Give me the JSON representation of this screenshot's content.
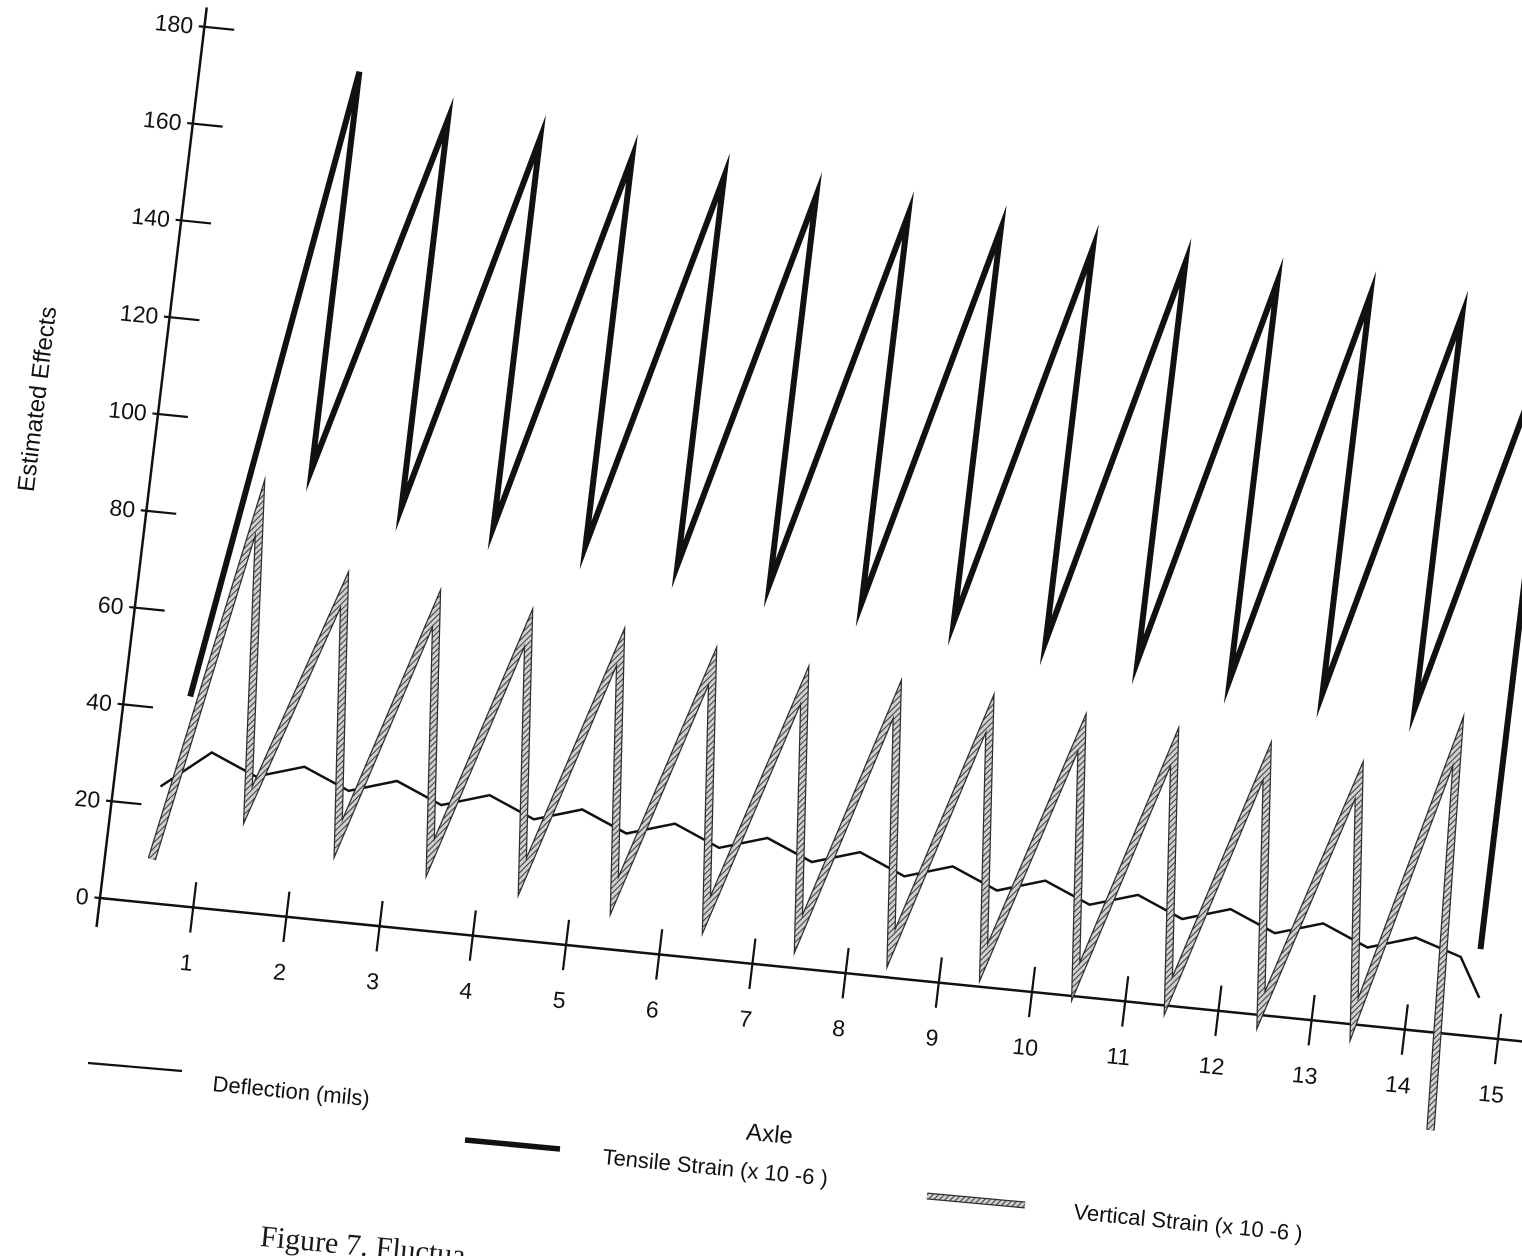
{
  "colors": {
    "ink": "#111111",
    "vertical_strain": "#8a8a8a"
  },
  "figure": {
    "caption": "Figure 7. Fluctua"
  },
  "chart_data": {
    "type": "line",
    "title": "",
    "xlabel": "Axle",
    "ylabel": "Estimated Effects",
    "xlim": [
      0,
      15
    ],
    "ylim": [
      0,
      180
    ],
    "x_ticks": [
      1,
      2,
      3,
      4,
      5,
      6,
      7,
      8,
      9,
      10,
      11,
      12,
      13,
      14,
      15
    ],
    "y_ticks": [
      0,
      20,
      40,
      60,
      80,
      100,
      120,
      140,
      160,
      180
    ],
    "grid": false,
    "legend_position": "bottom",
    "series": [
      {
        "name": "Deflection (mils)",
        "style": "thin",
        "x": [
          0.5,
          1.0,
          1.5,
          2.0,
          2.5,
          3.0,
          3.5,
          4.0,
          4.5,
          5.0,
          5.5,
          6.0,
          6.5,
          7.0,
          7.5,
          8.0,
          8.5,
          9.0,
          9.5,
          10.0,
          10.5,
          11.0,
          11.5,
          12.0,
          12.5,
          13.0,
          13.5,
          14.0,
          14.5,
          14.75
        ],
        "values": [
          24,
          32,
          28,
          31,
          27,
          30,
          26,
          29,
          25,
          28,
          24,
          27,
          23,
          26,
          22,
          25,
          21,
          24,
          20,
          23,
          19,
          22,
          18,
          21,
          17,
          20,
          16,
          19,
          16,
          8
        ]
      },
      {
        "name": "Tensile Strain (x 10 -6 )",
        "style": "thick",
        "x": [
          0.7,
          1.7,
          1.7,
          2.7,
          2.7,
          3.7,
          3.7,
          4.7,
          4.7,
          5.7,
          5.7,
          6.7,
          6.7,
          7.7,
          7.7,
          8.7,
          8.7,
          9.7,
          9.7,
          10.7,
          10.7,
          11.7,
          11.7,
          12.7,
          12.7,
          13.7,
          13.7,
          14.7,
          14.7
        ],
        "values": [
          43,
          174,
          92,
          166,
          86,
          164,
          84,
          162,
          82,
          160,
          80,
          158,
          78,
          156,
          76,
          155,
          74,
          153,
          72,
          152,
          70,
          150,
          68,
          149,
          67,
          147,
          66,
          146,
          18
        ]
      },
      {
        "name": "Vertical Strain (x 10 -6 )",
        "style": "hatched",
        "x": [
          0.5,
          1.2,
          1.45,
          2.2,
          2.45,
          3.2,
          3.45,
          4.2,
          4.45,
          5.2,
          5.45,
          6.2,
          6.45,
          7.2,
          7.45,
          8.2,
          8.45,
          9.2,
          9.45,
          10.2,
          10.45,
          11.2,
          11.45,
          12.2,
          12.45,
          13.2,
          13.45,
          14.2,
          14.4
        ],
        "values": [
          9,
          83,
          22,
          68,
          17,
          66,
          15,
          64,
          13,
          62,
          11,
          60,
          9,
          58,
          7,
          57,
          6,
          56,
          5,
          54,
          3,
          53,
          2,
          52,
          1,
          50,
          1,
          60,
          -20
        ]
      }
    ]
  }
}
